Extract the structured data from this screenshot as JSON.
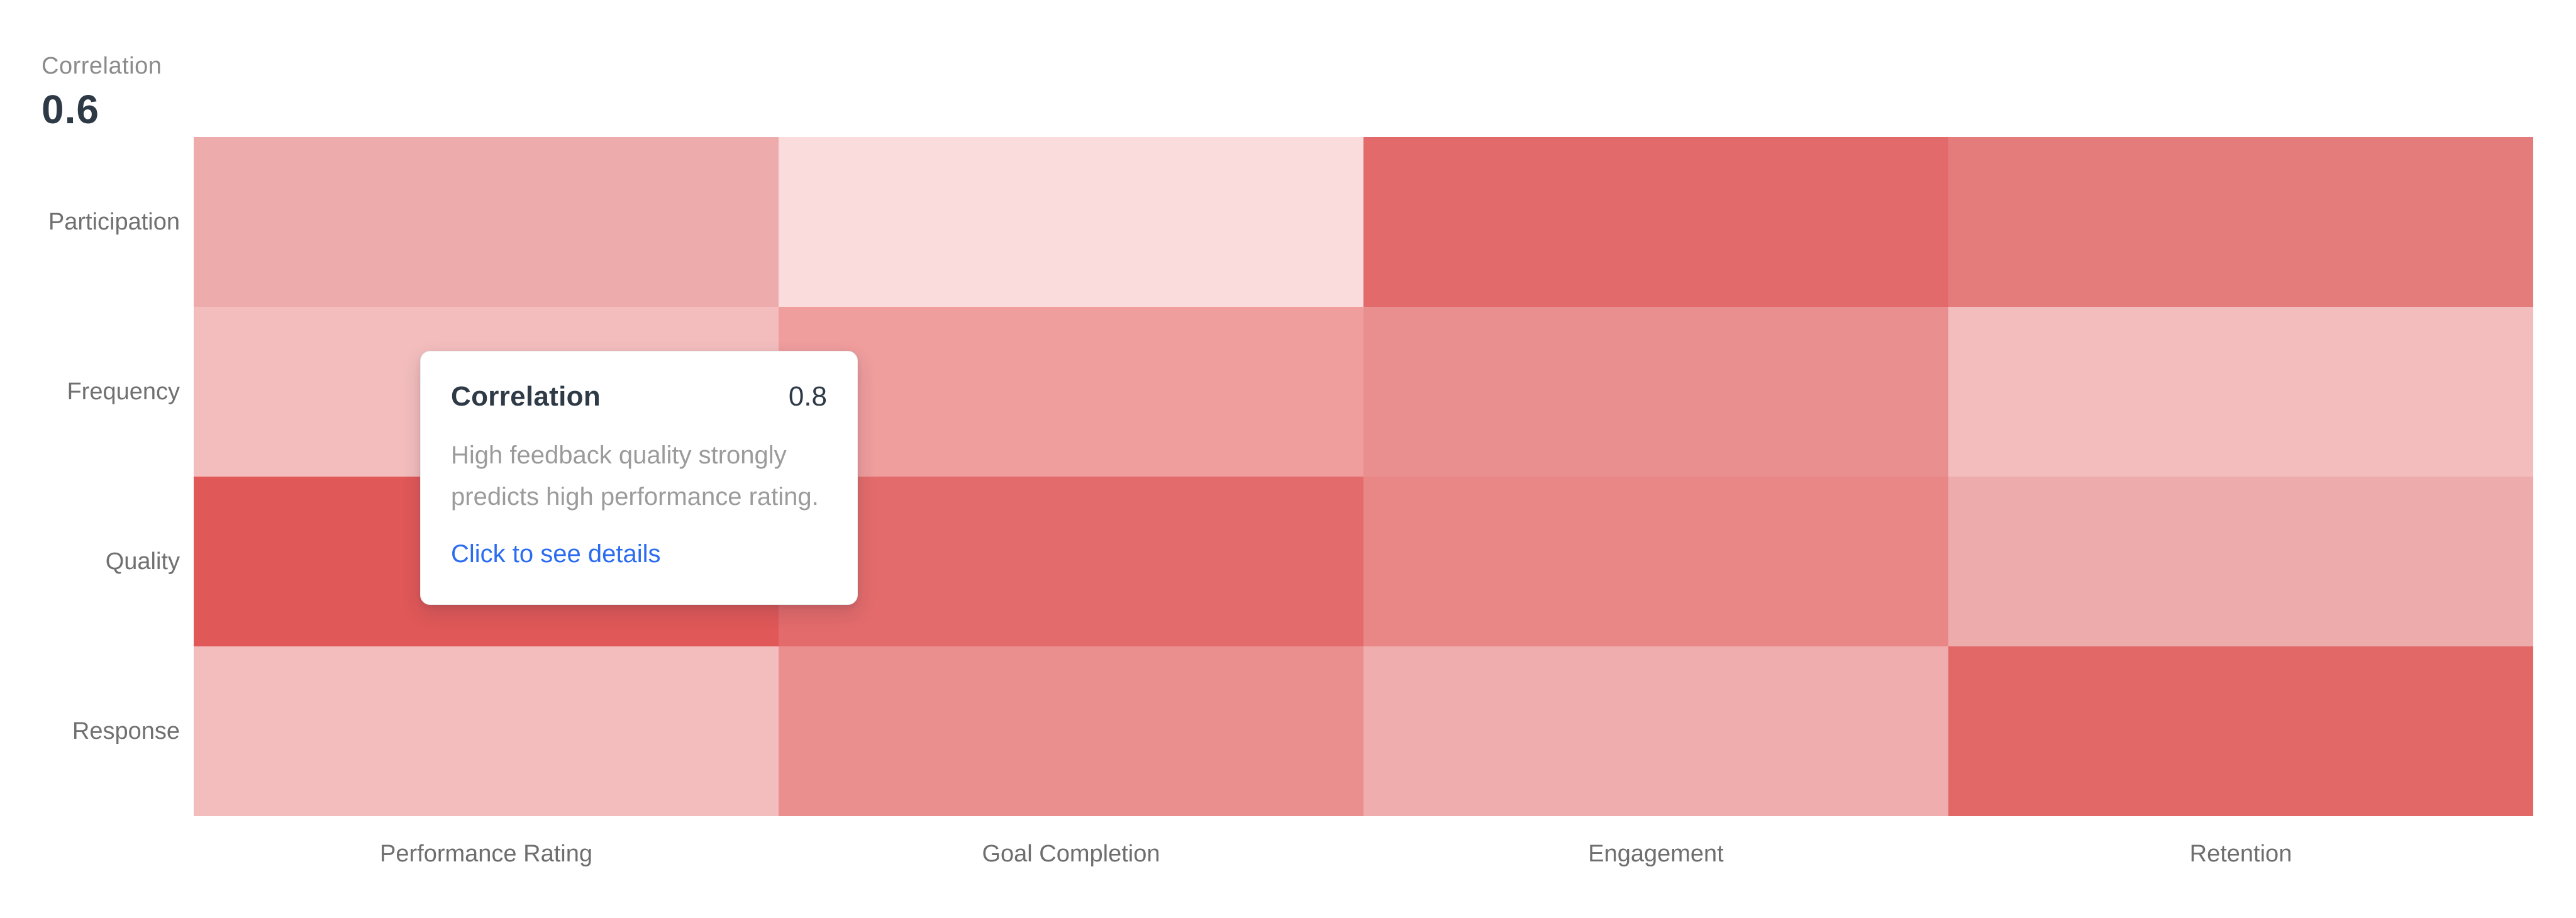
{
  "header": {
    "label": "Correlation",
    "value": "0.6"
  },
  "tooltip": {
    "title": "Correlation",
    "value": "0.8",
    "description": "High feedback quality strongly predicts high performance rating.",
    "description_lines": [
      "High feedback quality strongly",
      "predicts high performance rating."
    ],
    "link_label": "Click to see details"
  },
  "colors": {
    "background": "#ffffff",
    "legend_label_text": "#8b8b8b",
    "legend_value_text": "#2d3a46",
    "axis_label_text": "#6e6e6e",
    "tooltip_title_text": "#2e3a46",
    "tooltip_body_text": "#9b9b9b",
    "tooltip_link_blue": "#2b6cf0",
    "heatmap_high_red": "#e05858",
    "heatmap_low_pink": "#fbdcdc"
  },
  "chart_data": {
    "type": "heatmap",
    "title": "Correlation",
    "rows": [
      "Participation",
      "Frequency",
      "Quality",
      "Response"
    ],
    "columns": [
      "Performance Rating",
      "Goal Completion",
      "Engagement",
      "Retention"
    ],
    "values": [
      [
        0.4,
        0.15,
        0.7,
        0.6
      ],
      [
        0.3,
        0.45,
        0.5,
        0.3
      ],
      [
        0.8,
        0.7,
        0.55,
        0.4
      ],
      [
        0.3,
        0.5,
        0.4,
        0.7
      ]
    ],
    "cell_colors": [
      [
        "#eeabab",
        "#fbdcdc",
        "#e26a6a",
        "#e57c7c"
      ],
      [
        "#f3bdbd",
        "#ef9d9d",
        "#ea8f8f",
        "#f4bdbd"
      ],
      [
        "#e05858",
        "#e36b6b",
        "#e98686",
        "#eeabab"
      ],
      [
        "#f3bdbd",
        "#ea8e8e",
        "#efadad",
        "#e26868"
      ]
    ],
    "value_range": [
      0,
      1
    ],
    "colorscale": {
      "low": "#ffffff",
      "high": "#da2b2b"
    },
    "selected_correlation": "0.6",
    "hovered_cell": {
      "row": "Quality",
      "column": "Performance Rating",
      "value": 0.8
    },
    "legend_position": "top-left",
    "grid": false
  }
}
